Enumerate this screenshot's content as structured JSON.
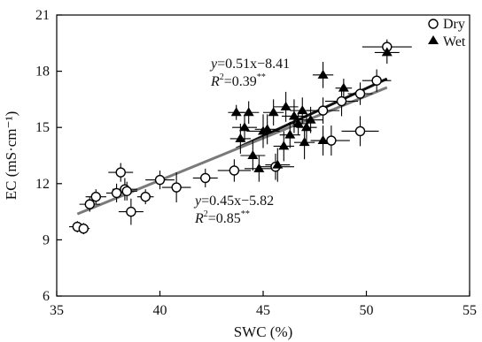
{
  "chart_data": {
    "type": "scatter",
    "xlabel": "SWC (%)",
    "ylabel": "EC (mS·cm⁻¹)",
    "xlim": [
      35,
      55
    ],
    "ylim": [
      6,
      21
    ],
    "xticks": [
      35,
      40,
      45,
      50,
      55
    ],
    "yticks": [
      6,
      9,
      12,
      15,
      18,
      21
    ],
    "legend_position": "top-right",
    "series": [
      {
        "name": "Dry",
        "marker": "open-circle",
        "color": "#000000",
        "points": [
          {
            "x": 36.0,
            "y": 9.7,
            "xerr": 0.4,
            "yerr": 0.3
          },
          {
            "x": 36.3,
            "y": 9.6,
            "xerr": 0.3,
            "yerr": 0.3
          },
          {
            "x": 36.6,
            "y": 10.9,
            "xerr": 0.5,
            "yerr": 0.4
          },
          {
            "x": 36.9,
            "y": 11.3,
            "xerr": 0.5,
            "yerr": 0.4
          },
          {
            "x": 37.9,
            "y": 11.5,
            "xerr": 0.5,
            "yerr": 0.5
          },
          {
            "x": 38.1,
            "y": 12.6,
            "xerr": 0.6,
            "yerr": 0.5
          },
          {
            "x": 38.3,
            "y": 11.7,
            "xerr": 0.6,
            "yerr": 0.6
          },
          {
            "x": 38.6,
            "y": 10.5,
            "xerr": 0.6,
            "yerr": 0.7
          },
          {
            "x": 38.4,
            "y": 11.6,
            "xerr": 0.5,
            "yerr": 0.5
          },
          {
            "x": 39.3,
            "y": 11.3,
            "xerr": 0.4,
            "yerr": 0.4
          },
          {
            "x": 40.0,
            "y": 12.2,
            "xerr": 0.7,
            "yerr": 0.5
          },
          {
            "x": 40.8,
            "y": 11.8,
            "xerr": 0.7,
            "yerr": 0.8
          },
          {
            "x": 42.2,
            "y": 12.3,
            "xerr": 0.6,
            "yerr": 0.5
          },
          {
            "x": 43.6,
            "y": 12.7,
            "xerr": 0.8,
            "yerr": 0.6
          },
          {
            "x": 45.6,
            "y": 12.9,
            "xerr": 0.9,
            "yerr": 0.7
          },
          {
            "x": 47.9,
            "y": 15.9,
            "xerr": 0.8,
            "yerr": 0.7
          },
          {
            "x": 48.3,
            "y": 14.3,
            "xerr": 0.9,
            "yerr": 0.8
          },
          {
            "x": 48.8,
            "y": 16.4,
            "xerr": 0.8,
            "yerr": 0.8
          },
          {
            "x": 49.7,
            "y": 14.8,
            "xerr": 0.9,
            "yerr": 0.8
          },
          {
            "x": 49.7,
            "y": 16.8,
            "xerr": 0.6,
            "yerr": 0.6
          },
          {
            "x": 50.5,
            "y": 17.5,
            "xerr": 0.7,
            "yerr": 0.6
          },
          {
            "x": 51.0,
            "y": 19.3,
            "xerr": 1.2,
            "yerr": 0.4
          }
        ]
      },
      {
        "name": "Wet",
        "marker": "filled-triangle",
        "color": "#000000",
        "points": [
          {
            "x": 43.7,
            "y": 15.8,
            "xerr": 0.4,
            "yerr": 0.4
          },
          {
            "x": 43.9,
            "y": 14.4,
            "xerr": 0.5,
            "yerr": 0.8
          },
          {
            "x": 44.1,
            "y": 15.0,
            "xerr": 0.6,
            "yerr": 0.7
          },
          {
            "x": 44.3,
            "y": 15.8,
            "xerr": 0.5,
            "yerr": 0.6
          },
          {
            "x": 44.5,
            "y": 13.5,
            "xerr": 0.6,
            "yerr": 0.8
          },
          {
            "x": 44.8,
            "y": 12.8,
            "xerr": 0.7,
            "yerr": 0.7
          },
          {
            "x": 45.0,
            "y": 14.8,
            "xerr": 0.8,
            "yerr": 0.9
          },
          {
            "x": 45.2,
            "y": 14.9,
            "xerr": 0.6,
            "yerr": 0.8
          },
          {
            "x": 45.5,
            "y": 15.8,
            "xerr": 0.5,
            "yerr": 0.7
          },
          {
            "x": 45.7,
            "y": 13.0,
            "xerr": 0.6,
            "yerr": 0.9
          },
          {
            "x": 46.0,
            "y": 14.0,
            "xerr": 0.5,
            "yerr": 0.8
          },
          {
            "x": 46.1,
            "y": 16.1,
            "xerr": 0.6,
            "yerr": 0.8
          },
          {
            "x": 46.3,
            "y": 14.6,
            "xerr": 0.5,
            "yerr": 0.7
          },
          {
            "x": 46.5,
            "y": 15.6,
            "xerr": 0.6,
            "yerr": 0.9
          },
          {
            "x": 46.7,
            "y": 15.2,
            "xerr": 0.5,
            "yerr": 0.6
          },
          {
            "x": 46.9,
            "y": 15.9,
            "xerr": 0.6,
            "yerr": 0.7
          },
          {
            "x": 47.0,
            "y": 14.2,
            "xerr": 0.5,
            "yerr": 0.9
          },
          {
            "x": 47.1,
            "y": 15.0,
            "xerr": 0.5,
            "yerr": 0.8
          },
          {
            "x": 47.3,
            "y": 15.4,
            "xerr": 0.6,
            "yerr": 0.7
          },
          {
            "x": 47.9,
            "y": 17.8,
            "xerr": 0.5,
            "yerr": 0.7
          },
          {
            "x": 47.9,
            "y": 14.3,
            "xerr": 0.6,
            "yerr": 0.8
          },
          {
            "x": 48.9,
            "y": 17.1,
            "xerr": 0.4,
            "yerr": 0.5
          },
          {
            "x": 51.0,
            "y": 19.0,
            "xerr": 0.6,
            "yerr": 0.6
          }
        ]
      }
    ],
    "fits": [
      {
        "series": "Wet",
        "color": "#111111",
        "x_range": [
          43.7,
          51.0
        ],
        "slope": 0.51,
        "intercept": -8.41,
        "equation_prefix": "y",
        "equation_rest": "=0.51x−8.41",
        "r2_prefix": "R",
        "r2_rest": "=0.39",
        "signif": "**"
      },
      {
        "series": "Dry",
        "color": "#7a7a7a",
        "x_range": [
          36.0,
          51.0
        ],
        "slope": 0.45,
        "intercept": -5.82,
        "equation_prefix": "y",
        "equation_rest": "=0.45x−5.82",
        "r2_prefix": "R",
        "r2_rest": "=0.85",
        "signif": "**"
      }
    ]
  }
}
